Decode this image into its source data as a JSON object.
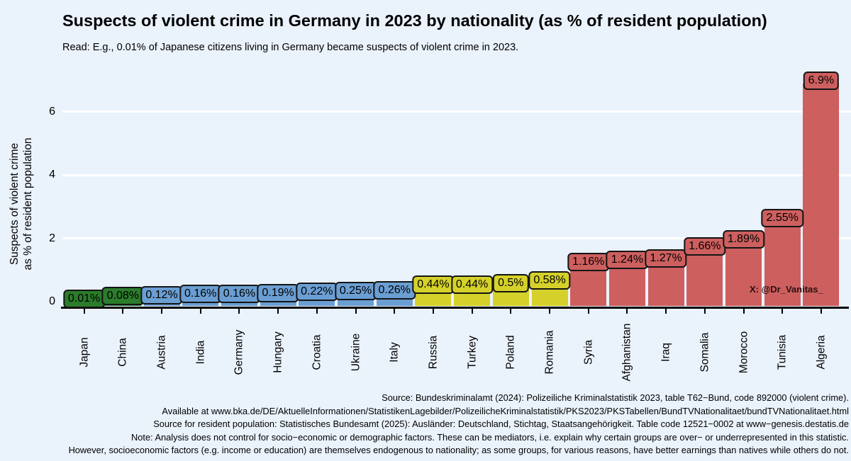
{
  "page": {
    "background": "#eaf2fc"
  },
  "title": "Suspects of violent crime in Germany in 2023 by nationality (as % of resident population)",
  "subtitle": "Read: E.g., 0.01% of Japanese citizens living in Germany became suspects of violent crime in 2023.",
  "watermark": "X: @Dr_Vanitas_",
  "chart_data": {
    "type": "bar",
    "title": "Suspects of violent crime in Germany in 2023 by nationality (as % of resident population)",
    "ylabel": "Suspects of violent crime as % of resident population",
    "ylabel_lines": [
      "Suspects of violent crime",
      "as % of resident population"
    ],
    "xlabel": "",
    "ylim": [
      0,
      7.3
    ],
    "yticks": [
      0,
      2,
      4,
      6
    ],
    "grid": "horizontal white gridlines at 2, 4, 6",
    "legend": "none",
    "categories": [
      "Japan",
      "China",
      "Austria",
      "India",
      "Germany",
      "Hungary",
      "Croatia",
      "Ukraine",
      "Italy",
      "Russia",
      "Turkey",
      "Poland",
      "Romania",
      "Syria",
      "Afghanistan",
      "Iraq",
      "Somalia",
      "Morocco",
      "Tunisia",
      "Algeria"
    ],
    "values": [
      0.01,
      0.08,
      0.12,
      0.16,
      0.16,
      0.19,
      0.22,
      0.25,
      0.26,
      0.44,
      0.44,
      0.5,
      0.58,
      1.16,
      1.24,
      1.27,
      1.66,
      1.89,
      2.55,
      6.9
    ],
    "labels": [
      "0.01%",
      "0.08%",
      "0.12%",
      "0.16%",
      "0.16%",
      "0.19%",
      "0.22%",
      "0.25%",
      "0.26%",
      "0.44%",
      "0.44%",
      "0.5%",
      "0.58%",
      "1.16%",
      "1.24%",
      "1.27%",
      "1.66%",
      "1.89%",
      "2.55%",
      "6.9%"
    ],
    "bar_colors": [
      "#2b7c2b",
      "#2b7c2b",
      "#6b9ed2",
      "#6b9ed2",
      "#6b9ed2",
      "#6b9ed2",
      "#6b9ed2",
      "#6b9ed2",
      "#6b9ed2",
      "#d5d12a",
      "#d5d12a",
      "#d5d12a",
      "#d5d12a",
      "#cd5f5f",
      "#cd5f5f",
      "#cd5f5f",
      "#cd5f5f",
      "#cd5f5f",
      "#cd5f5f",
      "#cd5f5f"
    ],
    "color_key": {
      "green": "#2b7c2b",
      "blue": "#6b9ed2",
      "yellow": "#d5d12a",
      "red": "#cd5f5f",
      "gridline": "#ffffff",
      "axis": "#000000",
      "background": "#eaf2fc"
    }
  },
  "footer": {
    "lines": [
      "Source: Bundeskriminalamt (2024): Polizeiliche Kriminalstatistik 2023, table T62−Bund, code 892000 (violent crime).",
      "Available at www.bka.de/DE/AktuelleInformationen/StatistikenLagebilder/PolizeilicheKriminalstatistik/PKS2023/PKSTabellen/BundTVNationalitaet/bundTVNationalitaet.html",
      "Source for resident population: Statistisches Bundesamt (2025): Ausländer: Deutschland, Stichtag, Staatsangehörigkeit. Table code 12521−0002 at www−genesis.destatis.de",
      "Note: Analysis does not control for socio−economic or demographic factors. These can be mediators, i.e. explain why certain groups are over− or underrepresented in this statistic.",
      "However, socioeconomic factors (e.g. income or education) are themselves endogenous to nationality; as some groups, for various reasons, have better earnings than natives while others do not."
    ]
  }
}
